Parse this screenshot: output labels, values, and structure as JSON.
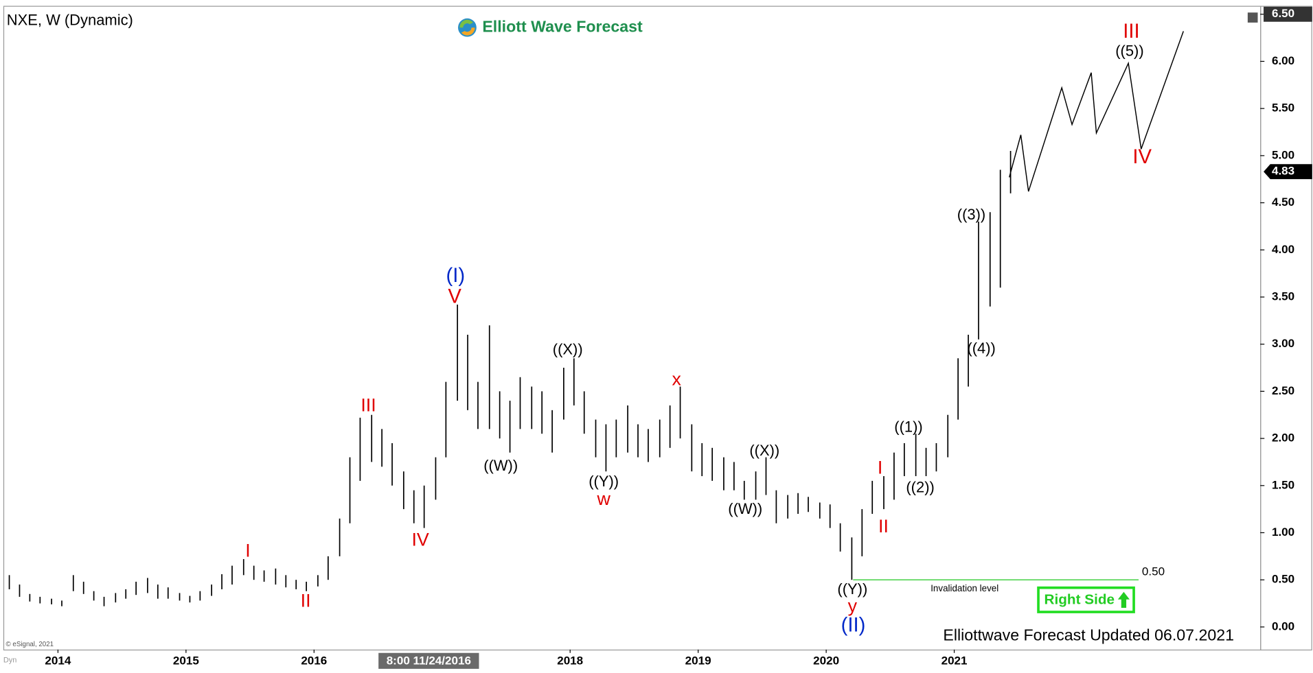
{
  "chart_data": {
    "type": "range-bar",
    "title": "NXE, W (Dynamic)",
    "brand": "Elliott Wave Forecast",
    "footer": "Elliottwave Forecast Updated 06.07.2021",
    "copyright": "© eSignal, 2021",
    "corner_label": "Dyn",
    "crosshair_label": "8:00 11/24/2016",
    "badge": "Right Side",
    "color": "#000000",
    "xlim": [
      2013.58,
      2023.39
    ],
    "ylim": [
      -0.24,
      6.58
    ],
    "xticks": [
      2014,
      2015,
      2016,
      2018,
      2019,
      2020,
      2021
    ],
    "yticks": [
      {
        "value": 0,
        "label": "0.00"
      },
      {
        "value": 0.5,
        "label": "0.50"
      },
      {
        "value": 1,
        "label": "1.00"
      },
      {
        "value": 1.5,
        "label": "1.50"
      },
      {
        "value": 2,
        "label": "2.00"
      },
      {
        "value": 2.5,
        "label": "2.50"
      },
      {
        "value": 3,
        "label": "3.00"
      },
      {
        "value": 3.5,
        "label": "3.50"
      },
      {
        "value": 4,
        "label": "4.00"
      },
      {
        "value": 4.5,
        "label": "4.50"
      },
      {
        "value": 5,
        "label": "5.00"
      },
      {
        "value": 5.5,
        "label": "5.50"
      },
      {
        "value": 6,
        "label": "6.00"
      },
      {
        "value": 6.5,
        "label": "6.50"
      }
    ],
    "x": [
      2013.62,
      2013.7,
      2013.78,
      2013.86,
      2013.95,
      2014.03,
      2014.12,
      2014.2,
      2014.28,
      2014.36,
      2014.45,
      2014.53,
      2014.61,
      2014.7,
      2014.78,
      2014.86,
      2014.95,
      2015.03,
      2015.11,
      2015.2,
      2015.28,
      2015.36,
      2015.45,
      2015.53,
      2015.61,
      2015.7,
      2015.78,
      2015.86,
      2015.94,
      2016.03,
      2016.11,
      2016.2,
      2016.28,
      2016.36,
      2016.45,
      2016.53,
      2016.61,
      2016.7,
      2016.78,
      2016.86,
      2016.95,
      2017.03,
      2017.12,
      2017.2,
      2017.28,
      2017.37,
      2017.45,
      2017.53,
      2017.61,
      2017.7,
      2017.78,
      2017.86,
      2017.95,
      2018.03,
      2018.11,
      2018.2,
      2018.28,
      2018.36,
      2018.45,
      2018.53,
      2018.61,
      2018.7,
      2018.78,
      2018.86,
      2018.95,
      2019.03,
      2019.11,
      2019.2,
      2019.28,
      2019.36,
      2019.45,
      2019.53,
      2019.61,
      2019.7,
      2019.78,
      2019.86,
      2019.95,
      2020.03,
      2020.11,
      2020.2,
      2020.28,
      2020.36,
      2020.45,
      2020.53,
      2020.61,
      2020.7,
      2020.78,
      2020.86,
      2020.95,
      2021.03,
      2021.11,
      2021.19,
      2021.28,
      2021.36,
      2021.44
    ],
    "high": [
      0.55,
      0.45,
      0.35,
      0.32,
      0.3,
      0.28,
      0.55,
      0.48,
      0.38,
      0.32,
      0.36,
      0.4,
      0.48,
      0.52,
      0.45,
      0.42,
      0.36,
      0.33,
      0.38,
      0.45,
      0.56,
      0.65,
      0.72,
      0.65,
      0.6,
      0.62,
      0.55,
      0.5,
      0.48,
      0.55,
      0.75,
      1.15,
      1.8,
      2.22,
      2.25,
      2.1,
      1.95,
      1.65,
      1.45,
      1.5,
      1.8,
      2.6,
      3.42,
      3.1,
      2.6,
      3.2,
      2.5,
      2.4,
      2.65,
      2.55,
      2.5,
      2.3,
      2.75,
      2.85,
      2.5,
      2.2,
      2.15,
      2.2,
      2.35,
      2.15,
      2.1,
      2.2,
      2.35,
      2.55,
      2.15,
      1.95,
      1.9,
      1.8,
      1.75,
      1.55,
      1.65,
      1.8,
      1.45,
      1.4,
      1.42,
      1.38,
      1.32,
      1.3,
      1.1,
      0.95,
      1.25,
      1.55,
      1.6,
      1.85,
      1.95,
      2.05,
      1.9,
      1.95,
      2.25,
      2.85,
      3.1,
      4.3,
      4.4,
      4.85,
      5.05
    ],
    "low": [
      0.4,
      0.32,
      0.27,
      0.25,
      0.24,
      0.22,
      0.38,
      0.35,
      0.28,
      0.22,
      0.26,
      0.3,
      0.34,
      0.36,
      0.3,
      0.3,
      0.28,
      0.26,
      0.28,
      0.33,
      0.4,
      0.45,
      0.55,
      0.5,
      0.48,
      0.45,
      0.42,
      0.4,
      0.38,
      0.43,
      0.5,
      0.75,
      1.1,
      1.55,
      1.75,
      1.7,
      1.5,
      1.25,
      1.1,
      1.05,
      1.35,
      1.8,
      2.4,
      2.3,
      2.1,
      2.1,
      2.0,
      1.85,
      2.1,
      2.1,
      2.05,
      1.85,
      2.2,
      2.35,
      2.05,
      1.8,
      1.65,
      1.8,
      1.85,
      1.8,
      1.75,
      1.8,
      1.9,
      2.0,
      1.65,
      1.6,
      1.55,
      1.45,
      1.45,
      1.35,
      1.35,
      1.4,
      1.1,
      1.15,
      1.2,
      1.22,
      1.15,
      1.05,
      0.8,
      0.5,
      0.75,
      1.2,
      1.25,
      1.35,
      1.6,
      1.6,
      1.6,
      1.65,
      1.8,
      2.2,
      2.55,
      3.05,
      3.4,
      3.6,
      4.6
    ],
    "last_price": {
      "value": 4.83,
      "label": "4.83"
    },
    "projection": {
      "x": [
        2021.43,
        2021.52,
        2021.58,
        2021.84,
        2021.92,
        2022.07,
        2022.11,
        2022.36,
        2022.46,
        2022.79
      ],
      "values": [
        4.77,
        5.22,
        4.62,
        5.72,
        5.33,
        5.88,
        5.24,
        5.98,
        5.07,
        6.32
      ]
    },
    "invalidation": {
      "x": [
        2020.21,
        2022.44
      ],
      "value": {
        "value": 0.5,
        "label": "0.50"
      },
      "text": "Invalidation level",
      "color": "#33cc33"
    },
    "annotations": [
      {
        "text": "(I)",
        "color": "#0028c8"
      },
      {
        "text": "V",
        "color": "#e00000"
      },
      {
        "text": "III",
        "color": "#e00000"
      },
      {
        "text": "IV",
        "color": "#e00000"
      },
      {
        "text": "I",
        "color": "#e00000"
      },
      {
        "text": "II",
        "color": "#e00000"
      },
      {
        "text": "((W))",
        "color": "#000000"
      },
      {
        "text": "((X))",
        "color": "#000000"
      },
      {
        "text": "((Y))",
        "color": "#000000"
      },
      {
        "text": "w",
        "color": "#e00000"
      },
      {
        "text": "x",
        "color": "#e00000"
      },
      {
        "text": "((X))",
        "color": "#000000"
      },
      {
        "text": "((W))",
        "color": "#000000"
      },
      {
        "text": "((Y))",
        "color": "#000000"
      },
      {
        "text": "y",
        "color": "#e00000"
      },
      {
        "text": "(II)",
        "color": "#0028c8"
      },
      {
        "text": "I",
        "color": "#e00000"
      },
      {
        "text": "II",
        "color": "#e00000"
      },
      {
        "text": "((1))",
        "color": "#000000"
      },
      {
        "text": "((2))",
        "color": "#000000"
      },
      {
        "text": "((3))",
        "color": "#000000"
      },
      {
        "text": "((4))",
        "color": "#000000"
      },
      {
        "text": "III",
        "color": "#e00000"
      },
      {
        "text": "((5))",
        "color": "#000000"
      },
      {
        "text": "IV",
        "color": "#e00000"
      }
    ]
  }
}
